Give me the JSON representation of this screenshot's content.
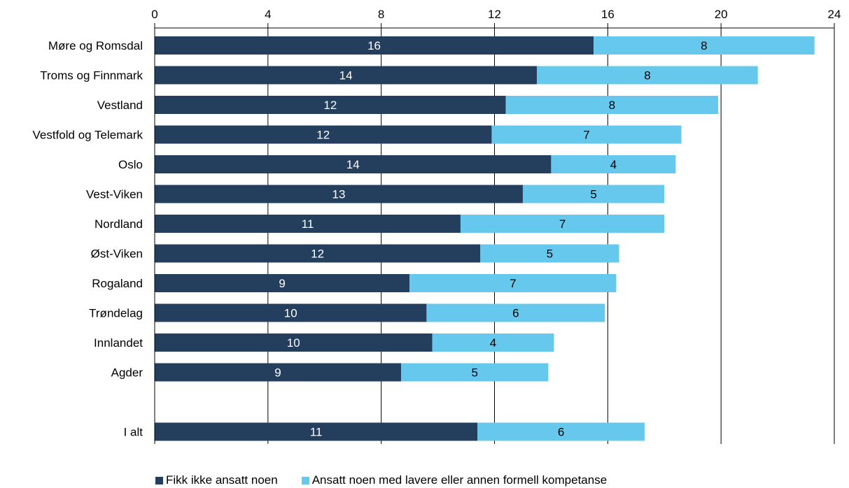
{
  "chart_data": {
    "type": "bar",
    "orientation": "horizontal",
    "stacked": true,
    "title": "",
    "xlabel": "",
    "ylabel": "",
    "xlim": [
      0,
      24
    ],
    "x_ticks": [
      "0",
      "4",
      "8",
      "12",
      "16",
      "20",
      "24"
    ],
    "x_axis_position": "top",
    "grid": "vertical",
    "legend_position": "bottom",
    "categories": [
      "Møre og Romsdal",
      "Troms og Finnmark",
      "Vestland",
      "Vestfold og Telemark",
      "Oslo",
      "Vest-Viken",
      "Nordland",
      "Øst-Viken",
      "Rogaland",
      "Trøndelag",
      "Innlandet",
      "Agder",
      "",
      "I alt"
    ],
    "series": [
      {
        "name": "Fikk ikke ansatt noen",
        "color": "#243f5e",
        "label_color": "#ffffff",
        "values": [
          15.5,
          13.5,
          12.4,
          11.9,
          14.0,
          13.0,
          10.8,
          11.5,
          9.0,
          9.6,
          9.8,
          8.7,
          null,
          11.4
        ],
        "labels": [
          "16",
          "14",
          "12",
          "12",
          "14",
          "13",
          "11",
          "12",
          "9",
          "10",
          "10",
          "9",
          "",
          "11"
        ]
      },
      {
        "name": "Ansatt noen med lavere eller annen formell kompetanse",
        "color": "#66c8ec",
        "label_color": "#000000",
        "values": [
          7.8,
          7.8,
          7.5,
          6.7,
          4.4,
          5.0,
          7.2,
          4.9,
          7.3,
          6.3,
          4.3,
          5.2,
          null,
          5.9
        ],
        "labels": [
          "8",
          "8",
          "8",
          "7",
          "4",
          "5",
          "7",
          "5",
          "7",
          "6",
          "4",
          "5",
          "",
          "6"
        ]
      }
    ]
  }
}
